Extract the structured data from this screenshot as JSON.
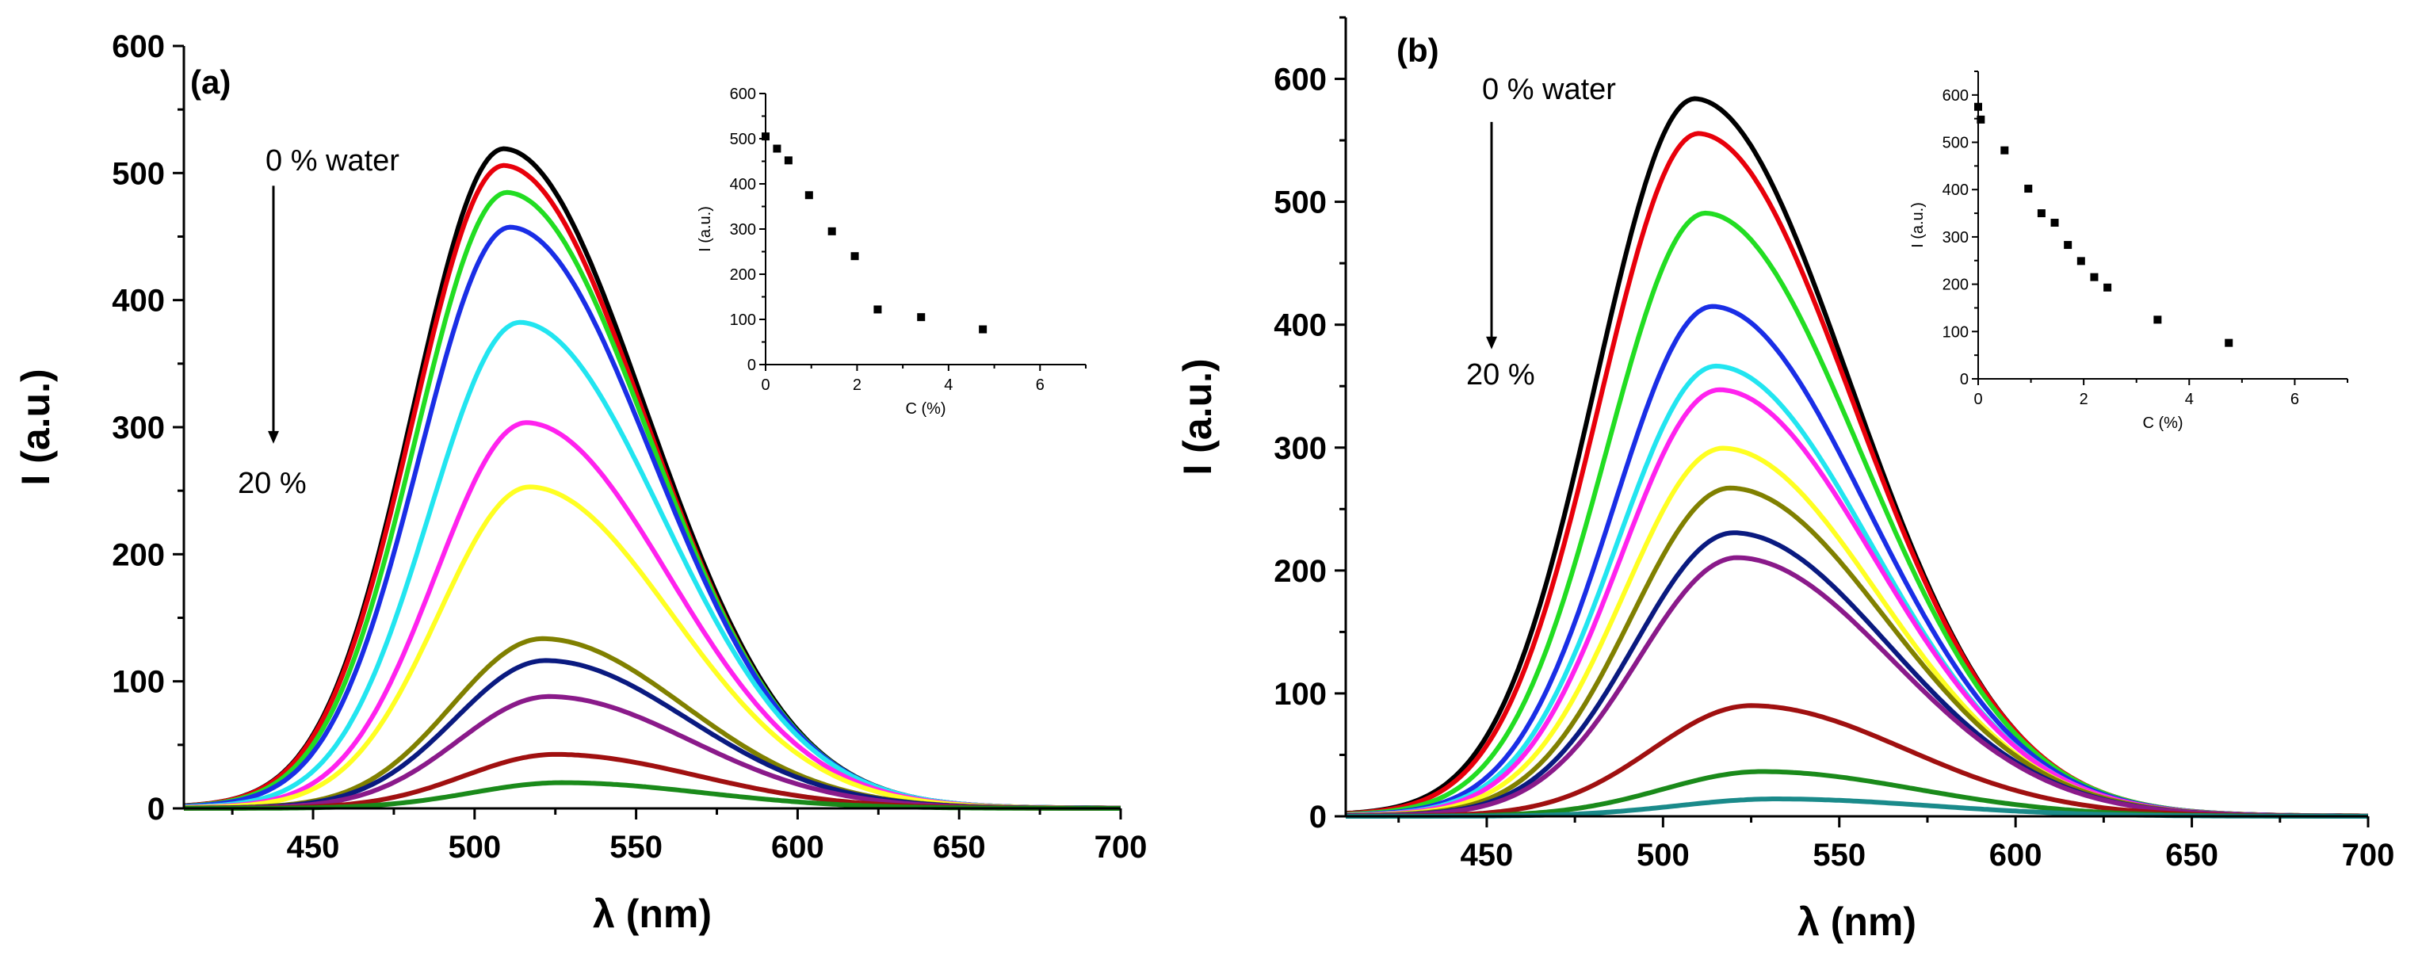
{
  "chart_data": [
    {
      "type": "line",
      "panel_label": "(a)",
      "xlabel": "λ (nm)",
      "ylabel": "I (a.u.)",
      "xlim": [
        410,
        700
      ],
      "ylim": [
        0,
        600
      ],
      "xticks": [
        450,
        500,
        550,
        600,
        650,
        700
      ],
      "yticks": [
        0,
        100,
        200,
        300,
        400,
        500,
        600
      ],
      "annotations": {
        "top": "0 % water",
        "bottom": "20 %",
        "arrow_from_y": 490,
        "arrow_to_y": 287
      },
      "series": [
        {
          "color": "#000000",
          "peak_x": 509,
          "peak_y": 513
        },
        {
          "color": "#e8000b",
          "peak_x": 509,
          "peak_y": 500
        },
        {
          "color": "#22dd22",
          "peak_x": 510,
          "peak_y": 479
        },
        {
          "color": "#1a2ee6",
          "peak_x": 511,
          "peak_y": 452
        },
        {
          "color": "#22e5f0",
          "peak_x": 514,
          "peak_y": 378
        },
        {
          "color": "#ff22ee",
          "peak_x": 516,
          "peak_y": 300
        },
        {
          "color": "#ffff22",
          "peak_x": 517,
          "peak_y": 250
        },
        {
          "color": "#808000",
          "peak_x": 521,
          "peak_y": 132
        },
        {
          "color": "#0a1a80",
          "peak_x": 522,
          "peak_y": 115
        },
        {
          "color": "#8a1a8a",
          "peak_x": 523,
          "peak_y": 87
        },
        {
          "color": "#a01010",
          "peak_x": 525,
          "peak_y": 42
        },
        {
          "color": "#1a8a1a",
          "peak_x": 527,
          "peak_y": 20
        }
      ],
      "inset": {
        "type": "scatter",
        "xlabel": "C (%)",
        "ylabel": "I (a.u.)",
        "xlim": [
          0,
          7
        ],
        "ylim": [
          0,
          600
        ],
        "xticks": [
          0,
          2,
          4,
          6
        ],
        "yticks": [
          0,
          100,
          200,
          300,
          400,
          500,
          600
        ],
        "points": [
          [
            0,
            505
          ],
          [
            0.25,
            478
          ],
          [
            0.5,
            452
          ],
          [
            0.95,
            375
          ],
          [
            1.45,
            295
          ],
          [
            1.95,
            240
          ],
          [
            2.45,
            122
          ],
          [
            3.4,
            105
          ],
          [
            4.75,
            78
          ]
        ]
      }
    },
    {
      "type": "line",
      "panel_label": "(b)",
      "xlabel": "λ (nm)",
      "ylabel": "I (a.u.)",
      "xlim": [
        410,
        700
      ],
      "ylim": [
        0,
        650
      ],
      "xticks": [
        450,
        500,
        550,
        600,
        650,
        700
      ],
      "yticks": [
        0,
        100,
        200,
        300,
        400,
        500,
        600
      ],
      "annotations": {
        "top": "0 % water",
        "bottom": "20 %",
        "arrow_from_y": 565,
        "arrow_to_y": 380
      },
      "series": [
        {
          "color": "#000000",
          "peak_x": 509,
          "peak_y": 577
        },
        {
          "color": "#e8000b",
          "peak_x": 510,
          "peak_y": 549
        },
        {
          "color": "#22dd22",
          "peak_x": 512,
          "peak_y": 485
        },
        {
          "color": "#1a2ee6",
          "peak_x": 514,
          "peak_y": 410
        },
        {
          "color": "#22e5f0",
          "peak_x": 515,
          "peak_y": 362
        },
        {
          "color": "#ff22ee",
          "peak_x": 516,
          "peak_y": 343
        },
        {
          "color": "#ffff22",
          "peak_x": 517,
          "peak_y": 296
        },
        {
          "color": "#808000",
          "peak_x": 519,
          "peak_y": 264
        },
        {
          "color": "#0a1a80",
          "peak_x": 520,
          "peak_y": 228
        },
        {
          "color": "#8a1a8a",
          "peak_x": 521,
          "peak_y": 208
        },
        {
          "color": "#a01010",
          "peak_x": 525,
          "peak_y": 89
        },
        {
          "color": "#1a8a1a",
          "peak_x": 528,
          "peak_y": 36
        },
        {
          "color": "#1a8a8a",
          "peak_x": 532,
          "peak_y": 14
        }
      ],
      "inset": {
        "type": "scatter",
        "xlabel": "C (%)",
        "ylabel": "I (a.u.)",
        "xlim": [
          0,
          7
        ],
        "ylim": [
          0,
          650
        ],
        "xticks": [
          0,
          2,
          4,
          6
        ],
        "yticks": [
          0,
          100,
          200,
          300,
          400,
          500,
          600
        ],
        "points": [
          [
            0,
            575
          ],
          [
            0.05,
            548
          ],
          [
            0.5,
            483
          ],
          [
            0.95,
            402
          ],
          [
            1.2,
            350
          ],
          [
            1.45,
            330
          ],
          [
            1.7,
            283
          ],
          [
            1.95,
            249
          ],
          [
            2.2,
            215
          ],
          [
            2.45,
            193
          ],
          [
            3.4,
            125
          ],
          [
            4.75,
            76
          ]
        ]
      }
    }
  ]
}
